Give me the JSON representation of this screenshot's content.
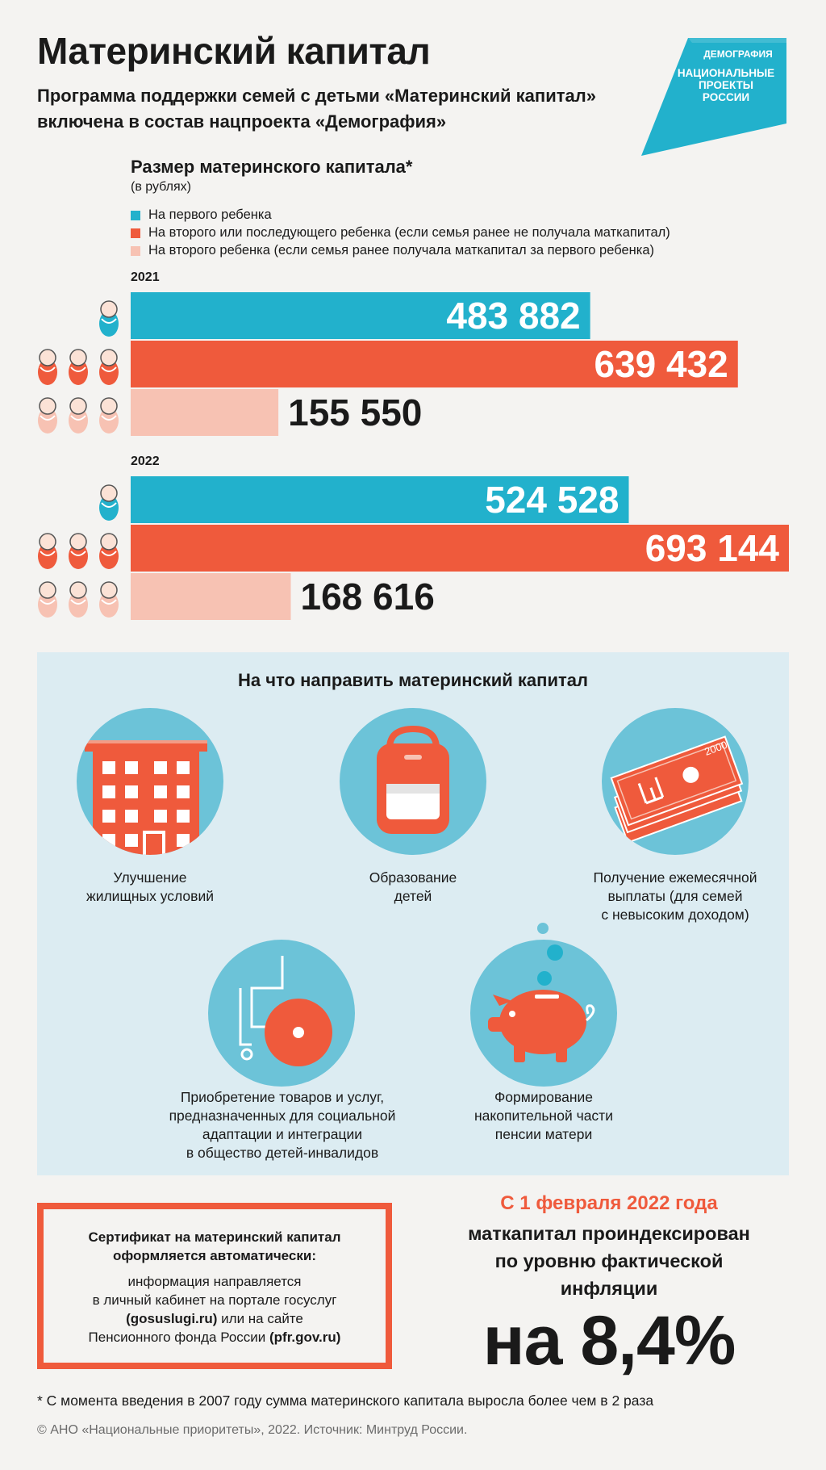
{
  "header": {
    "title": "Материнский капитал",
    "subtitle": "Программа поддержки семей с детьми «Материнский капитал» включена в состав нацпроекта «Демография»"
  },
  "logo": {
    "line1": "ДЕМОГРАФИЯ",
    "line2": "НАЦИОНАЛЬНЫЕ",
    "line3": "ПРОЕКТЫ",
    "line4": "РОССИИ"
  },
  "colors": {
    "first": "#22b1cc",
    "second": "#ef5a3c",
    "second_prev": "#f7c2b3",
    "panel": "#dcecf2"
  },
  "chart_data": {
    "type": "bar",
    "title": "Размер материнского капитала*",
    "unit": "(в рублях)",
    "legend": [
      "На первого ребенка",
      "На второго или последующего ребенка (если семья ранее не получала маткапитал)",
      "На второго ребенка (если семья ранее получала маткапитал за первого ребенка)"
    ],
    "groups": [
      {
        "year": "2021",
        "values": [
          483882,
          639432,
          155550
        ],
        "labels": [
          "483 882",
          "639 432",
          "155 550"
        ]
      },
      {
        "year": "2022",
        "values": [
          524528,
          693144,
          168616
        ],
        "labels": [
          "524 528",
          "693 144",
          "168 616"
        ]
      }
    ],
    "xlim": [
      0,
      693144
    ]
  },
  "uses": {
    "heading": "На что направить материнский капитал",
    "items": [
      {
        "icon": "building-icon",
        "label_lines": [
          "Улучшение",
          "жилищных условий"
        ]
      },
      {
        "icon": "backpack-icon",
        "label_lines": [
          "Образование",
          "детей"
        ]
      },
      {
        "icon": "banknotes-icon",
        "label_lines": [
          "Получение ежемесячной",
          "выплаты (для семей",
          "с невысоким доходом)"
        ],
        "note_value": "2000"
      },
      {
        "icon": "wheelchair-icon",
        "label_lines": [
          "Приобретение товаров и услуг,",
          "предназначенных для социальной",
          "адаптации и интеграции",
          "в общество детей-инвалидов"
        ]
      },
      {
        "icon": "piggy-bank-icon",
        "label_lines": [
          "Формирование",
          "накопительной части",
          "пенсии матери"
        ]
      }
    ]
  },
  "certificate": {
    "title_lines": [
      "Сертификат на материнский капитал",
      "оформляется автоматически:"
    ],
    "body_lines": [
      "информация направляется",
      "в личный кабинет на портале госуслуг"
    ],
    "link1": "(gosuslugi.ru)",
    "link1_suffix": " или на сайте",
    "body_line_after": "Пенсионного фонда России ",
    "link2": "(pfr.gov.ru)"
  },
  "indexation": {
    "date": "С 1 февраля 2022 года",
    "text_lines": [
      "маткапитал проиндексирован",
      "по уровню фактической",
      "инфляции"
    ],
    "value": "на 8,4%"
  },
  "footnote": "* С момента введения в 2007 году сумма материнского капитала выросла более чем в 2 раза",
  "copyright": "© АНО «Национальные приоритеты», 2022. Источник: Минтруд России."
}
